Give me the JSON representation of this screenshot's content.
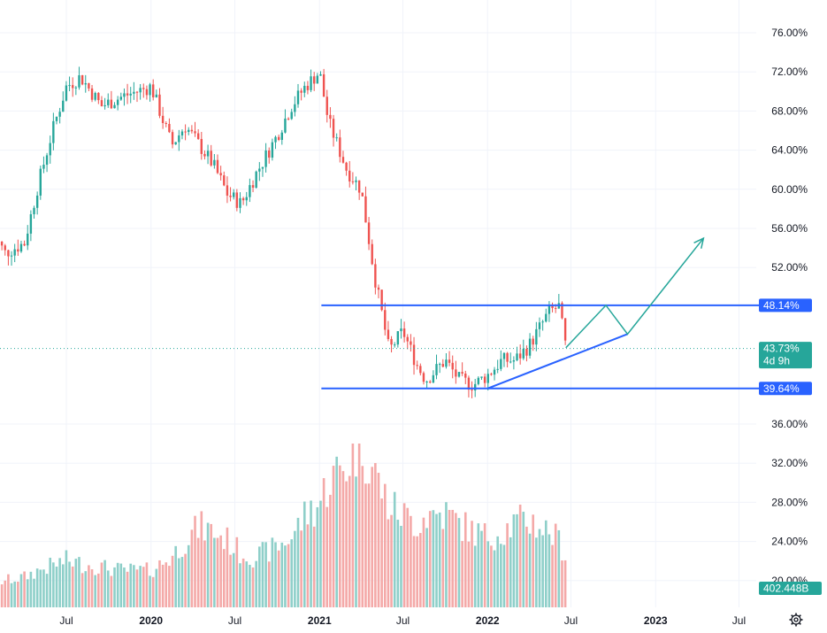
{
  "chart_data": {
    "type": "candlestick",
    "title": "",
    "y_axis": {
      "position": "right",
      "range": [
        18,
        78
      ],
      "unit": "%",
      "ticks": [
        "76.00%",
        "72.00%",
        "68.00%",
        "64.00%",
        "60.00%",
        "56.00%",
        "52.00%",
        "36.00%",
        "32.00%",
        "28.00%",
        "24.00%",
        "20.00%"
      ],
      "tick_values": [
        76,
        72,
        68,
        64,
        60,
        56,
        52,
        36,
        32,
        28,
        24,
        20
      ]
    },
    "x_axis": {
      "ticks": [
        {
          "label": "Jul",
          "bold": false
        },
        {
          "label": "2020",
          "bold": true
        },
        {
          "label": "Jul",
          "bold": false
        },
        {
          "label": "2021",
          "bold": true
        },
        {
          "label": "Jul",
          "bold": false
        },
        {
          "label": "2022",
          "bold": true
        },
        {
          "label": "Jul",
          "bold": false
        },
        {
          "label": "2023",
          "bold": true
        },
        {
          "label": "Jul",
          "bold": false
        }
      ],
      "tick_dates": [
        "2019-07-01",
        "2020-01-01",
        "2020-07-01",
        "2021-01-01",
        "2021-07-01",
        "2022-01-01",
        "2022-07-01",
        "2023-01-01",
        "2023-07-01"
      ]
    },
    "price_path": {
      "dates": [
        "2019-01-21",
        "2019-02-18",
        "2019-04-01",
        "2019-05-01",
        "2019-06-01",
        "2019-07-01",
        "2019-08-01",
        "2019-09-15",
        "2019-11-01",
        "2020-01-01",
        "2020-02-15",
        "2020-03-15",
        "2020-04-15",
        "2020-05-15",
        "2020-06-15",
        "2020-07-15",
        "2020-08-15",
        "2020-10-01",
        "2020-11-01",
        "2020-12-01",
        "2021-01-01",
        "2021-01-20",
        "2021-03-01",
        "2021-04-01",
        "2021-05-01",
        "2021-06-01",
        "2021-07-01",
        "2021-08-01",
        "2021-08-20",
        "2021-10-01",
        "2021-11-01",
        "2021-12-01",
        "2022-01-01",
        "2022-02-01",
        "2022-03-01",
        "2022-04-01",
        "2022-05-15",
        "2022-06-05",
        "2022-06-20"
      ],
      "values": [
        55.5,
        53.5,
        54.5,
        60.5,
        66,
        70.5,
        71.5,
        68.5,
        69.5,
        70.5,
        64.5,
        66.5,
        64.5,
        62.5,
        59.5,
        58.5,
        61.5,
        65.5,
        68.5,
        70.5,
        72,
        67,
        62,
        60,
        51,
        43.5,
        45.5,
        42,
        40.5,
        42.5,
        40.5,
        40,
        41,
        42.5,
        42.5,
        44,
        47.5,
        48,
        43.73
      ]
    },
    "volume": {
      "label": "402.448B",
      "relative_levels": [
        0.14,
        0.16,
        0.18,
        0.22,
        0.25,
        0.28,
        0.26,
        0.24,
        0.22,
        0.22,
        0.3,
        0.4,
        0.48,
        0.45,
        0.4,
        0.32,
        0.3,
        0.36,
        0.42,
        0.55,
        0.62,
        0.75,
        0.85,
        1.0,
        0.8,
        0.6,
        0.55,
        0.5,
        0.55,
        0.56,
        0.5,
        0.45,
        0.42,
        0.45,
        0.5,
        0.52,
        0.45,
        0.4,
        0.3
      ]
    },
    "annotations": {
      "resistance": {
        "value": 48.14,
        "label": "48.14%",
        "start": "2021-01-05",
        "end": "2023-09-15"
      },
      "support": {
        "value": 39.64,
        "label": "39.64%",
        "start": "2021-01-05",
        "end": "2023-09-15"
      },
      "current": {
        "value": 43.73,
        "label": "43.73%",
        "countdown": "4d 9h"
      },
      "trendline": {
        "points": [
          {
            "date": "2022-01-01",
            "value": 39.64
          },
          {
            "date": "2022-11-01",
            "value": 45.2
          }
        ]
      },
      "projection": {
        "points": [
          {
            "date": "2022-06-20",
            "value": 43.8
          },
          {
            "date": "2022-09-15",
            "value": 48.14
          },
          {
            "date": "2022-11-01",
            "value": 45.2
          },
          {
            "date": "2023-04-15",
            "value": 55
          }
        ]
      }
    },
    "colors": {
      "up": "#26a69a",
      "down": "#ef5350",
      "volume_up": "#8ecfc9",
      "volume_down": "#f4a9a8",
      "line": "#2962ff",
      "projection": "#26a69a",
      "current_badge": "#26a69a",
      "level_badge": "#2962ff"
    },
    "grid": true,
    "legend": "none"
  }
}
